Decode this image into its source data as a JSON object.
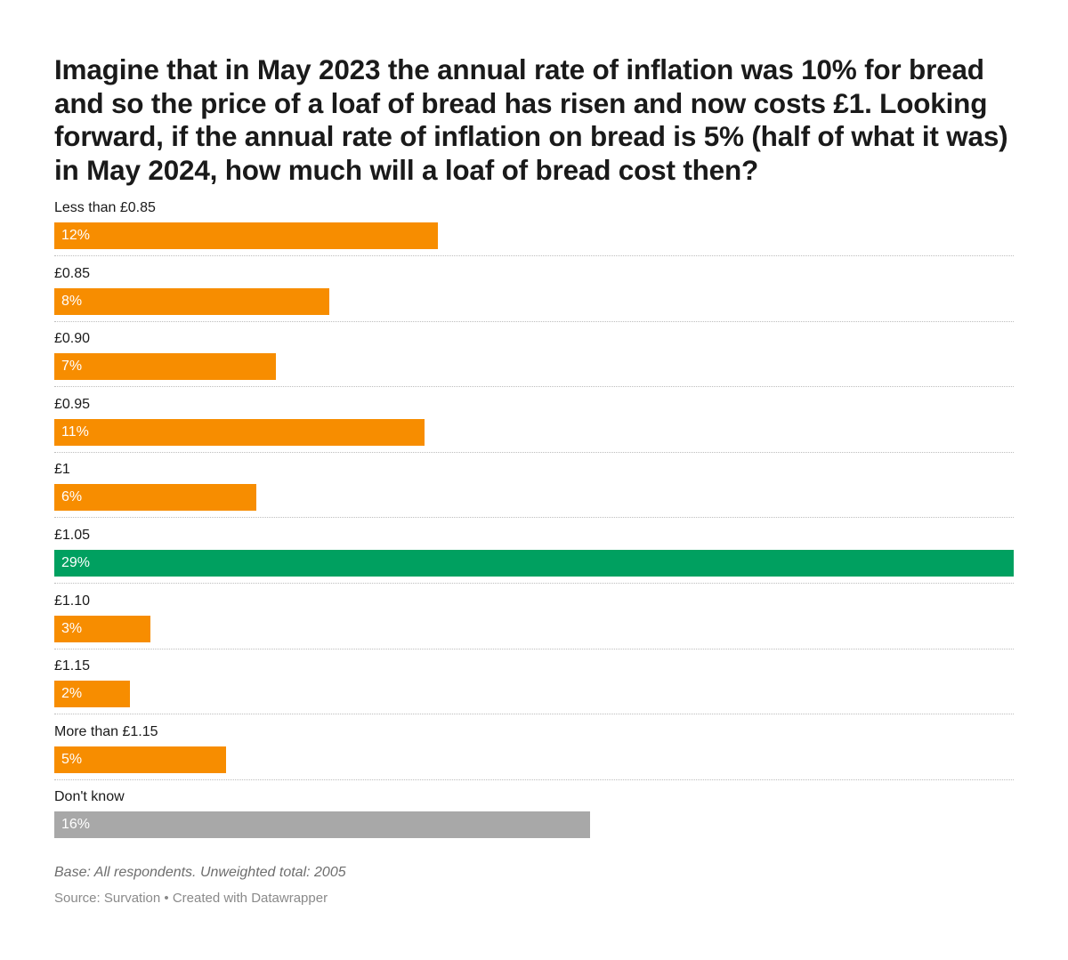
{
  "chart_data": {
    "type": "bar",
    "orientation": "horizontal",
    "title": "Imagine that in May 2023 the annual rate of inflation was 10% for bread and so the price of a loaf of bread has risen and now costs £1. Looking forward, if the annual rate of inflation on bread is 5% (half of what it was) in May 2024, how much will a loaf of bread cost then?",
    "categories": [
      "Less than £0.85",
      "£0.85",
      "£0.90",
      "£0.95",
      "£1",
      "£1.05",
      "£1.10",
      "£1.15",
      "More than £1.15",
      "Don't know"
    ],
    "values": [
      12,
      8,
      7,
      11,
      6,
      29,
      3,
      2,
      5,
      16
    ],
    "value_labels": [
      "12%",
      "8%",
      "7%",
      "11%",
      "6%",
      "29%",
      "3%",
      "2%",
      "5%",
      "16%"
    ],
    "bar_values": [
      11.6,
      8.3,
      6.7,
      11.2,
      6.1,
      29,
      2.9,
      2.3,
      5.2,
      16.2
    ],
    "colors": [
      "#f78d00",
      "#f78d00",
      "#f78d00",
      "#f78d00",
      "#f78d00",
      "#00a060",
      "#f78d00",
      "#f78d00",
      "#f78d00",
      "#a8a8a8"
    ],
    "xlim": [
      0,
      29
    ],
    "xlabel": "",
    "ylabel": "",
    "grid": false,
    "legend": "none"
  },
  "notes": "Base: All respondents. Unweighted total: 2005",
  "source": "Source: Survation • Created with Datawrapper"
}
